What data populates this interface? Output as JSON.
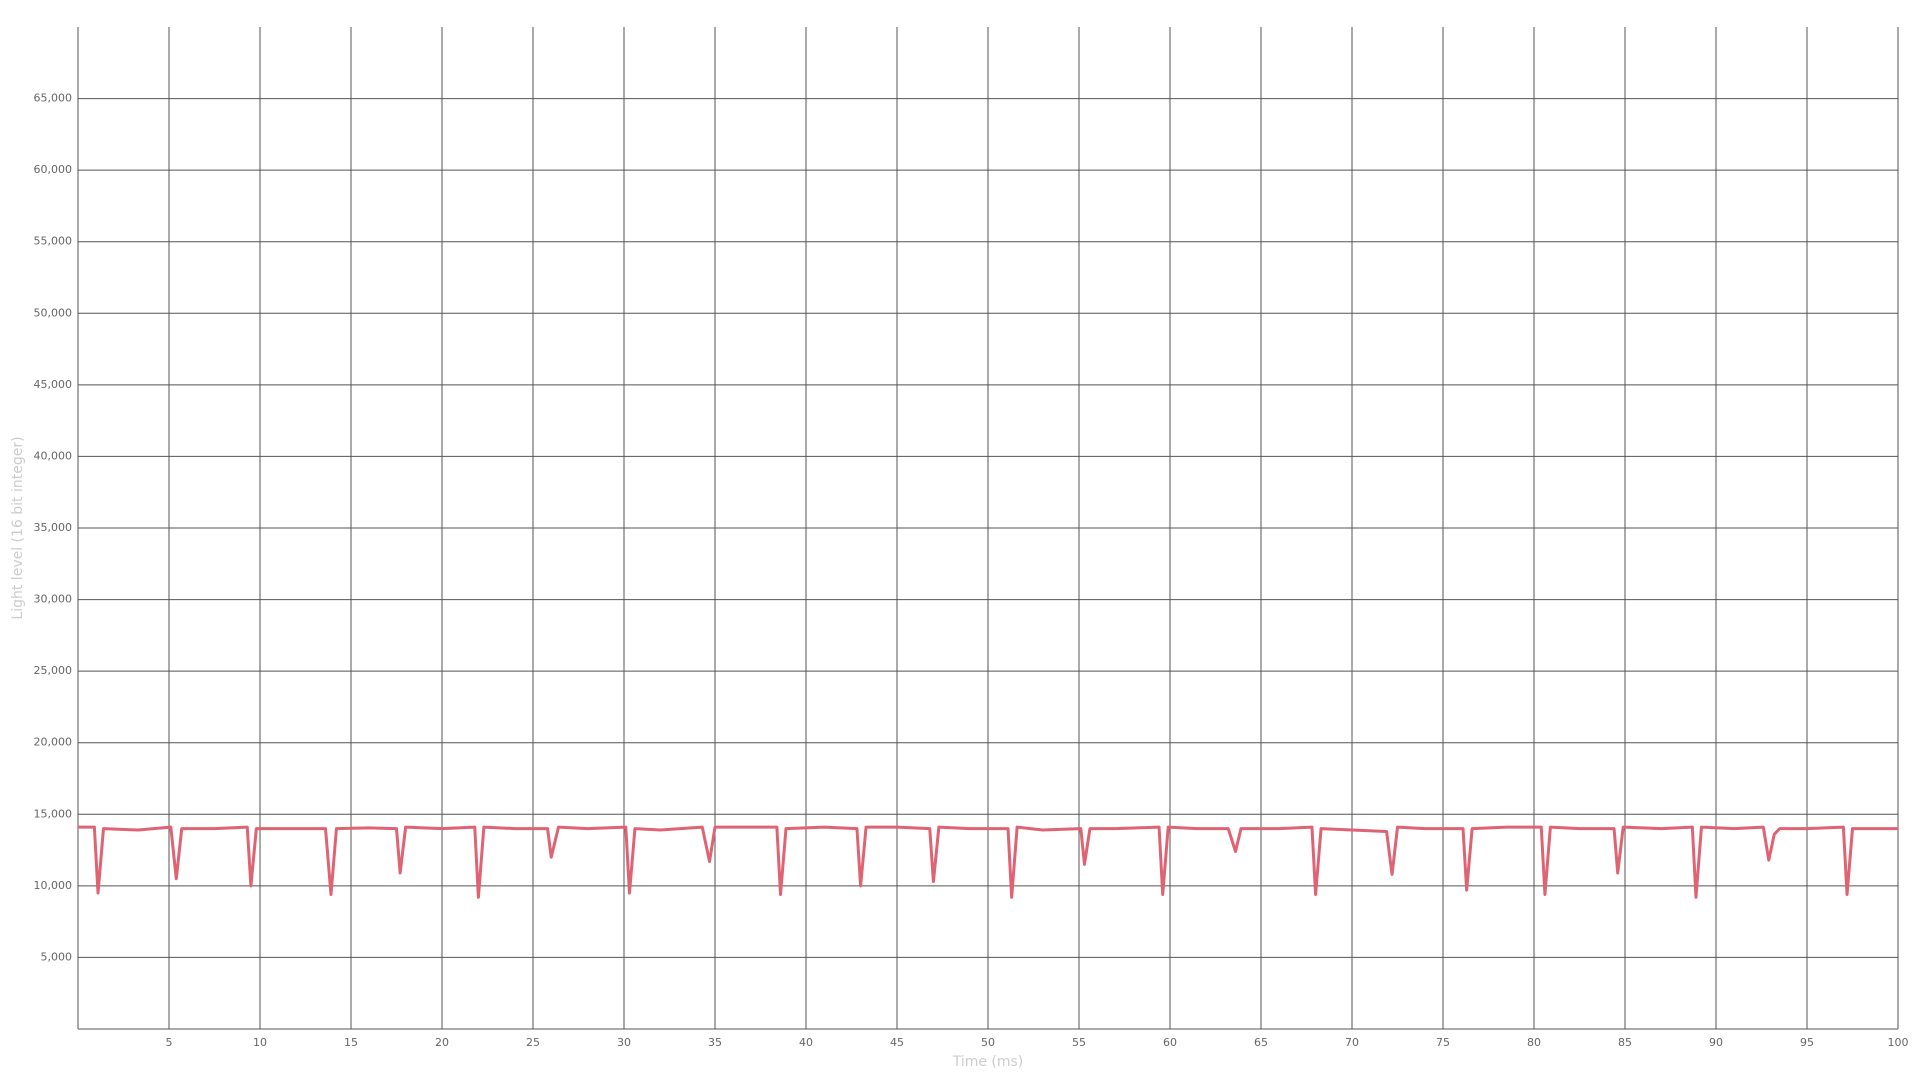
{
  "chart_data": {
    "type": "line",
    "x_label": "Time (ms)",
    "y_label": "Light level (16 bit integer)",
    "xlim": [
      0,
      100
    ],
    "ylim": [
      0,
      70000
    ],
    "xticks": [
      5,
      10,
      15,
      20,
      25,
      30,
      35,
      40,
      45,
      50,
      55,
      60,
      65,
      70,
      75,
      80,
      85,
      90,
      95,
      100
    ],
    "yticks": [
      {
        "value": 5000,
        "label": "5,000"
      },
      {
        "value": 10000,
        "label": "10,000"
      },
      {
        "value": 15000,
        "label": "15,000"
      },
      {
        "value": 20000,
        "label": "20,000"
      },
      {
        "value": 25000,
        "label": "25,000"
      },
      {
        "value": 30000,
        "label": "30,000"
      },
      {
        "value": 35000,
        "label": "35,000"
      },
      {
        "value": 40000,
        "label": "40,000"
      },
      {
        "value": 45000,
        "label": "45,000"
      },
      {
        "value": 50000,
        "label": "50,000"
      },
      {
        "value": 55000,
        "label": "55,000"
      },
      {
        "value": 60000,
        "label": "60,000"
      },
      {
        "value": 65000,
        "label": "65,000"
      }
    ],
    "grid": true,
    "x": [
      0,
      0.9,
      1.1,
      1.4,
      3.3,
      5.1,
      5.4,
      5.7,
      7.5,
      9.3,
      9.5,
      9.8,
      11.5,
      13.6,
      13.9,
      14.2,
      16,
      17.5,
      17.7,
      18,
      20,
      21.8,
      22,
      22.3,
      24,
      25.8,
      26,
      26.4,
      28,
      30.1,
      30.3,
      30.6,
      32,
      34.3,
      34.7,
      35,
      37,
      38.4,
      38.6,
      38.9,
      41,
      42.8,
      43,
      43.3,
      45,
      46.8,
      47,
      47.3,
      49,
      51.1,
      51.3,
      51.6,
      53,
      55.1,
      55.3,
      55.6,
      57,
      59.4,
      59.6,
      59.9,
      61.5,
      63.2,
      63.6,
      63.9,
      66,
      67.8,
      68,
      68.3,
      70,
      71.9,
      72.2,
      72.5,
      74,
      76.1,
      76.3,
      76.6,
      78.5,
      80.4,
      80.6,
      80.9,
      82.5,
      84.4,
      84.6,
      84.9,
      87,
      88.7,
      88.9,
      89.2,
      91,
      92.6,
      92.9,
      93.2,
      93.5,
      95,
      97,
      97.2,
      97.5,
      100
    ],
    "series": [
      {
        "name": "Light level",
        "color": "#e06373",
        "values": [
          14100,
          14100,
          9500,
          14000,
          13900,
          14100,
          10500,
          14000,
          14000,
          14100,
          10000,
          14000,
          14000,
          14000,
          9400,
          14000,
          14050,
          14000,
          10900,
          14100,
          14000,
          14100,
          9200,
          14100,
          14000,
          14000,
          12000,
          14100,
          14000,
          14100,
          9500,
          14000,
          13900,
          14100,
          11700,
          14100,
          14100,
          14100,
          9400,
          14000,
          14100,
          14000,
          10000,
          14100,
          14100,
          14000,
          10300,
          14100,
          14000,
          14000,
          9200,
          14100,
          13900,
          14000,
          11500,
          14000,
          14000,
          14100,
          9400,
          14100,
          14000,
          14000,
          12400,
          14000,
          14000,
          14100,
          9400,
          14000,
          13900,
          13800,
          10800,
          14100,
          14000,
          14000,
          9700,
          14000,
          14100,
          14100,
          9400,
          14100,
          14000,
          14000,
          10900,
          14100,
          14000,
          14100,
          9200,
          14100,
          14000,
          14100,
          11800,
          13600,
          14000,
          14000,
          14100,
          9400,
          14000,
          14000
        ]
      }
    ]
  }
}
